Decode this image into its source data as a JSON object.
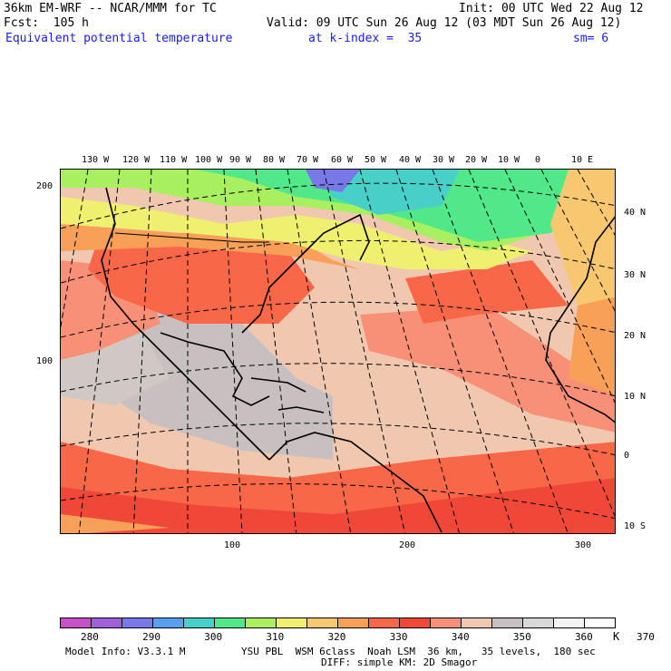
{
  "header": {
    "model": "36km EM-WRF -- NCAR/MMM for TC",
    "init": "Init: 00 UTC Wed 22 Aug 12",
    "fcst": "Fcst:  105 h",
    "valid": "Valid: 09 UTC Sun 26 Aug 12 (03 MDT Sun 26 Aug 12)",
    "field": "Equivalent potential temperature",
    "level": "at k-index =  35",
    "smooth": "sm= 6"
  },
  "map": {
    "top_lon_labels": [
      "130 W",
      "120 W",
      "110 W",
      "100 W",
      "90 W",
      "80 W",
      "70 W",
      "60 W",
      "50 W",
      "40 W",
      "30 W",
      "20 W",
      "10 W",
      "0",
      "10 E"
    ],
    "right_lat_labels": [
      "40 N",
      "30 N",
      "20 N",
      "10 N",
      "0",
      "10 S"
    ],
    "left_grid_labels": [
      "200",
      "100"
    ],
    "bottom_grid_labels": [
      "100",
      "200",
      "300"
    ]
  },
  "colorbar": {
    "colors": [
      "#c850c8",
      "#a060d8",
      "#7878e8",
      "#5aa0f0",
      "#46d0c8",
      "#50e888",
      "#a8f060",
      "#f0f070",
      "#f8c870",
      "#f8a058",
      "#f86848",
      "#f04838",
      "#f89078",
      "#f0c8b0",
      "#c8c0c0",
      "#d8d8d8",
      "#f4f4f4",
      "#ffffff"
    ],
    "labels": [
      "280",
      "290",
      "300",
      "310",
      "320",
      "330",
      "340",
      "350",
      "360",
      "370"
    ],
    "unit": "K"
  },
  "footer": {
    "model_info": "Model Info: V3.3.1 M",
    "physics1": "YSU PBL  WSM 6class  Noah LSM  36 km,   35 levels,  180 sec",
    "physics2": "DIFF: simple KM: 2D Smagor"
  }
}
